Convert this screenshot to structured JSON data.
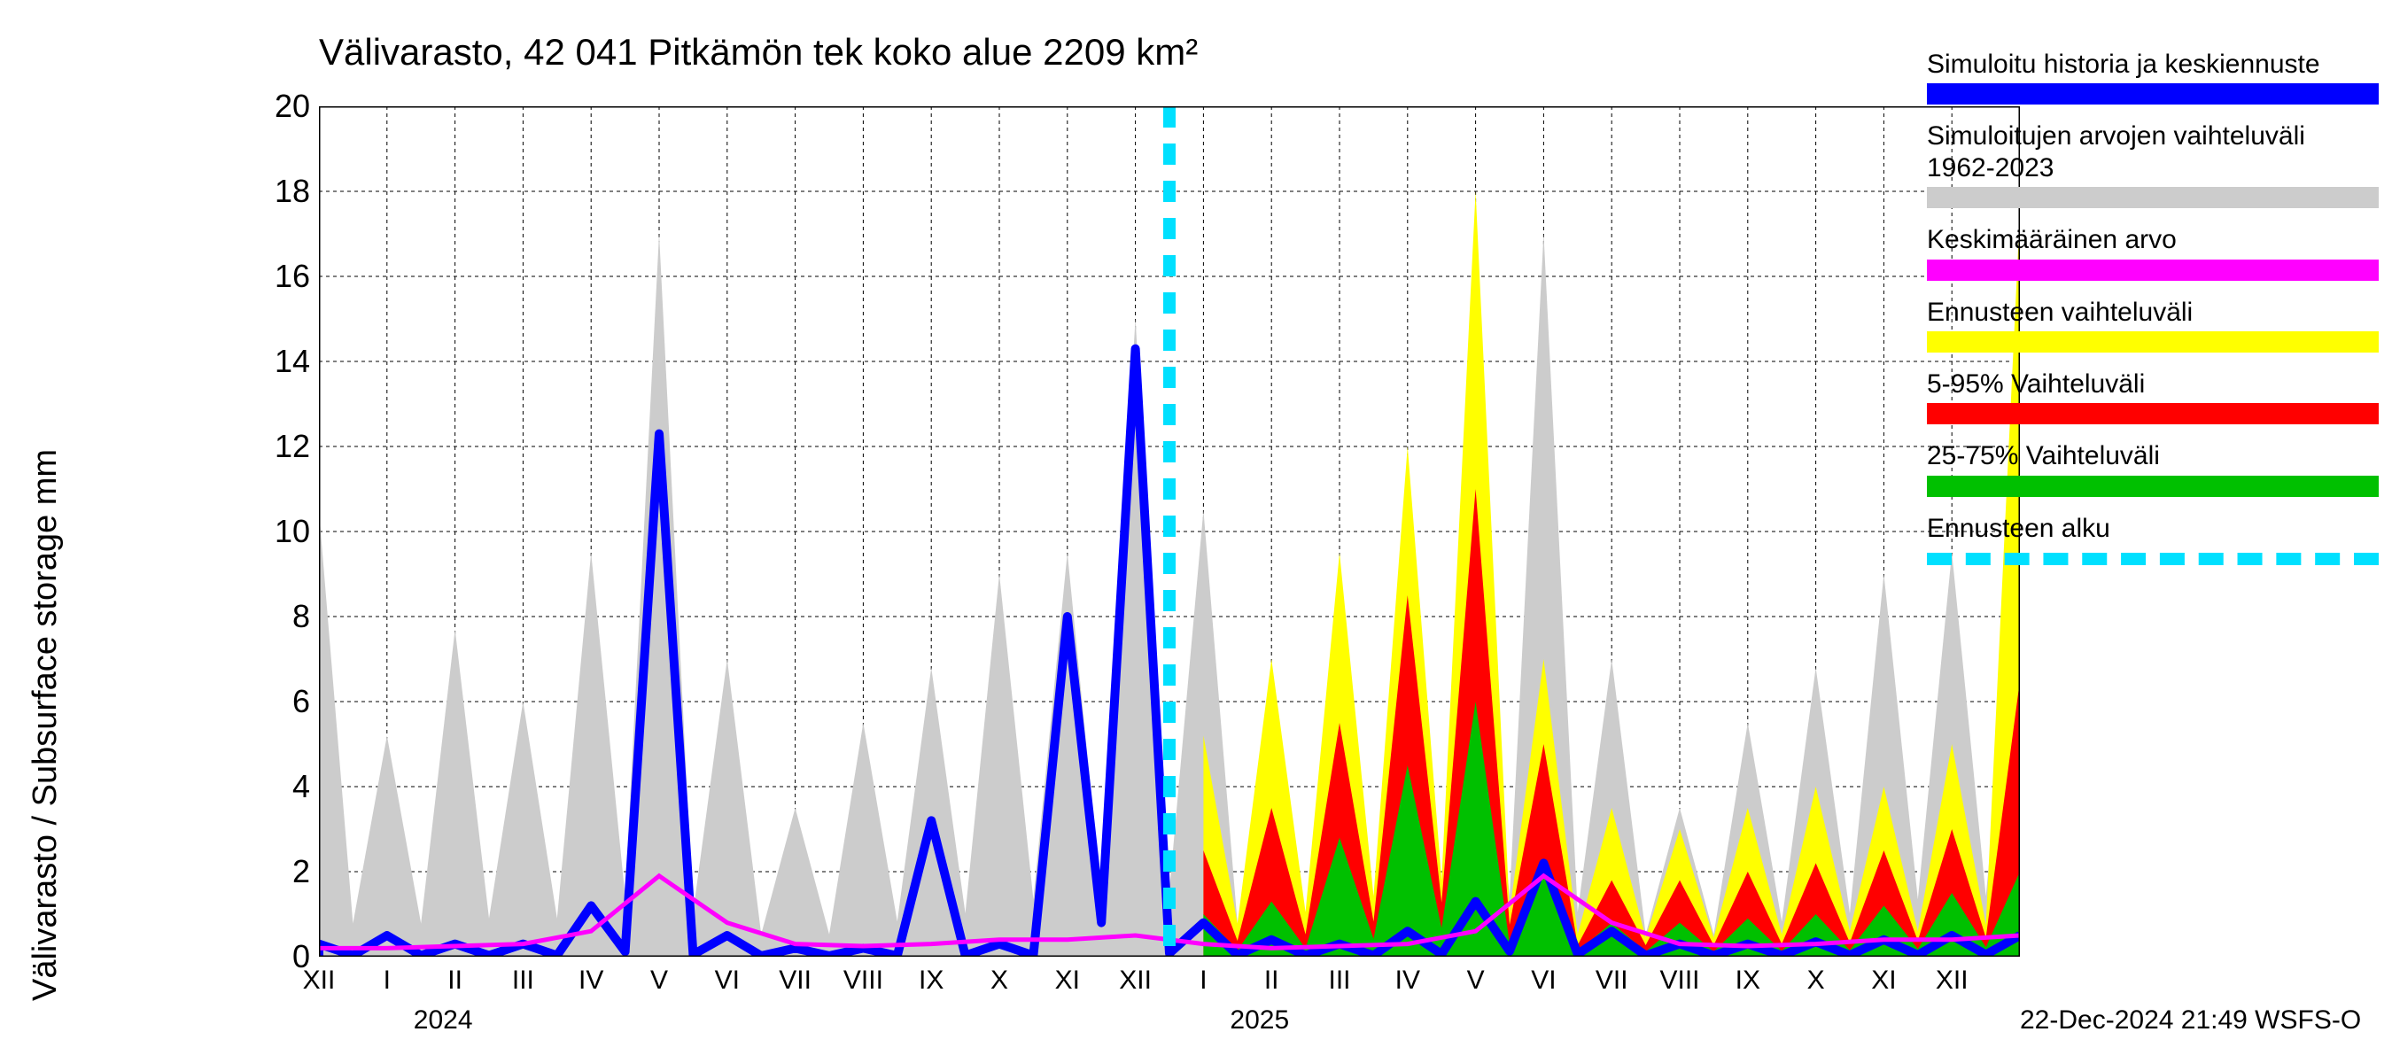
{
  "title": "Välivarasto, 42 041 Pitkämön tek koko alue 2209 km²",
  "y_axis_label": "Välivarasto / Subsurface storage  mm",
  "timestamp": "22-Dec-2024 21:49 WSFS-O",
  "chart": {
    "type": "line-area",
    "background_color": "#ffffff",
    "grid_color": "#000000",
    "grid_dash": "4,4",
    "ylim": [
      0,
      20
    ],
    "yticks": [
      0,
      2,
      4,
      6,
      8,
      10,
      12,
      14,
      16,
      18,
      20
    ],
    "n_x_points": 26,
    "x_tick_labels": [
      "XII",
      "I",
      "II",
      "III",
      "IV",
      "V",
      "VI",
      "VII",
      "VIII",
      "IX",
      "X",
      "XI",
      "XII",
      "I",
      "II",
      "III",
      "IV",
      "V",
      "VI",
      "VII",
      "VIII",
      "IX",
      "X",
      "XI",
      "XII"
    ],
    "year_labels": {
      "2024": 1,
      "2025": 13
    },
    "forecast_start_index": 12.5,
    "colors": {
      "history_forecast_line": "#0000ff",
      "sim_range": "#cccccc",
      "mean_value": "#ff00ff",
      "forecast_range": "#ffff00",
      "range_5_95": "#ff0000",
      "range_25_75": "#00c000",
      "forecast_start": "#00e0ff"
    },
    "series": {
      "sim_range_high": [
        10.5,
        5.2,
        7.7,
        6.0,
        9.5,
        17.0,
        7.0,
        3.5,
        5.5,
        6.8,
        9.0,
        9.5,
        15.0,
        10.5,
        5.2,
        7.7,
        6.0,
        9.5,
        17.0,
        7.0,
        3.5,
        5.5,
        6.8,
        9.0,
        9.5,
        10.0
      ],
      "sim_range_low": [
        0,
        0,
        0,
        0,
        0,
        0,
        0,
        0,
        0,
        0,
        0,
        0,
        0,
        0,
        0,
        0,
        0,
        0,
        0,
        0,
        0,
        0,
        0,
        0,
        0,
        0
      ],
      "forecast_range_high": [
        0,
        0,
        0,
        0,
        0,
        0,
        0,
        0,
        0,
        0,
        0,
        0,
        0,
        5.2,
        7.0,
        9.5,
        12.0,
        18.0,
        7.0,
        3.5,
        3.0,
        3.5,
        4.0,
        4.0,
        5.0,
        17.5
      ],
      "forecast_range_low": [
        0,
        0,
        0,
        0,
        0,
        0,
        0,
        0,
        0,
        0,
        0,
        0,
        0,
        0,
        0,
        0,
        0,
        0,
        0,
        0,
        0,
        0,
        0,
        0,
        0,
        0
      ],
      "range_5_95_high": [
        0,
        0,
        0,
        0,
        0,
        0,
        0,
        0,
        0,
        0,
        0,
        0,
        0,
        2.5,
        3.5,
        5.5,
        8.5,
        11.0,
        5.0,
        1.8,
        1.8,
        2.0,
        2.2,
        2.5,
        3.0,
        6.5
      ],
      "range_5_95_low": [
        0,
        0,
        0,
        0,
        0,
        0,
        0,
        0,
        0,
        0,
        0,
        0,
        0,
        0,
        0,
        0,
        0,
        0,
        0,
        0,
        0,
        0,
        0,
        0,
        0,
        0
      ],
      "range_25_75_high": [
        0,
        0,
        0,
        0,
        0,
        0,
        0,
        0,
        0,
        0,
        0,
        0,
        0,
        1.0,
        1.3,
        2.8,
        4.5,
        6.0,
        2.0,
        0.8,
        0.8,
        0.9,
        1.0,
        1.2,
        1.5,
        2.0
      ],
      "range_25_75_low": [
        0,
        0,
        0,
        0,
        0,
        0,
        0,
        0,
        0,
        0,
        0,
        0,
        0,
        0,
        0,
        0,
        0,
        0,
        0,
        0,
        0,
        0,
        0,
        0,
        0,
        0
      ],
      "mean_value": [
        0.2,
        0.2,
        0.25,
        0.3,
        0.6,
        1.9,
        0.8,
        0.3,
        0.25,
        0.3,
        0.4,
        0.4,
        0.5,
        0.3,
        0.2,
        0.25,
        0.3,
        0.6,
        1.9,
        0.8,
        0.3,
        0.25,
        0.3,
        0.4,
        0.4,
        0.5
      ],
      "history_line": [
        0.3,
        0.5,
        0.3,
        0.3,
        1.2,
        12.3,
        0.5,
        0.2,
        0.2,
        3.2,
        0.3,
        8.0,
        14.3,
        0.8,
        0.4,
        0.3,
        0.6,
        1.3,
        2.2,
        0.6,
        0.3,
        0.3,
        0.35,
        0.4,
        0.5,
        0.5
      ]
    },
    "title_fontsize": 42,
    "axis_label_fontsize": 38,
    "tick_fontsize": 34
  },
  "legend": [
    {
      "text": "Simuloitu historia ja keskiennuste",
      "color": "#0000ff",
      "type": "solid"
    },
    {
      "text": "Simuloitujen arvojen vaihteluväli 1962-2023",
      "color": "#cccccc",
      "type": "solid"
    },
    {
      "text": "Keskimääräinen arvo",
      "color": "#ff00ff",
      "type": "solid"
    },
    {
      "text": "Ennusteen vaihteluväli",
      "color": "#ffff00",
      "type": "solid"
    },
    {
      "text": "5-95% Vaihteluväli",
      "color": "#ff0000",
      "type": "solid"
    },
    {
      "text": "25-75% Vaihteluväli",
      "color": "#00c000",
      "type": "solid"
    },
    {
      "text": "Ennusteen alku",
      "color": "#00e0ff",
      "type": "dashed"
    }
  ]
}
